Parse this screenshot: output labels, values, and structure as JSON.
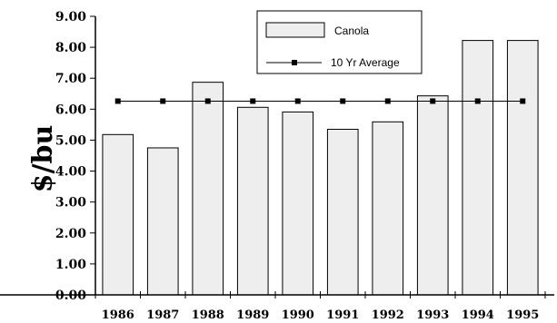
{
  "chart_data": {
    "type": "bar",
    "ylabel": "$/bu",
    "xlabel": "",
    "title": "",
    "categories": [
      "1986",
      "1987",
      "1988",
      "1989",
      "1990",
      "1991",
      "1992",
      "1993",
      "1994",
      "1995"
    ],
    "series": [
      {
        "name": "Canola",
        "type": "bar",
        "values": [
          5.18,
          4.75,
          6.87,
          6.06,
          5.91,
          5.35,
          5.59,
          6.43,
          8.22,
          8.22
        ],
        "color": "#eeeeee"
      },
      {
        "name": "10 Yr Average",
        "type": "line",
        "values": [
          6.26,
          6.26,
          6.26,
          6.26,
          6.26,
          6.26,
          6.26,
          6.26,
          6.26,
          6.26
        ],
        "color": "#000000"
      }
    ],
    "yticks": [
      "0.00",
      "1.00",
      "2.00",
      "3.00",
      "4.00",
      "5.00",
      "6.00",
      "7.00",
      "8.00",
      "9.00"
    ],
    "ylim": [
      0,
      9
    ],
    "grid": false,
    "legend": "top-right"
  }
}
